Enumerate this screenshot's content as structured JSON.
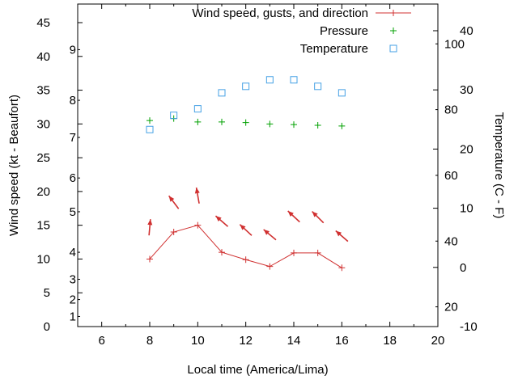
{
  "page": {
    "background": "#ffffff",
    "text_color": "#000000"
  },
  "chart_data": {
    "type": "line",
    "title": "",
    "xlabel": "Local time (America/Lima)",
    "ylabel_left": "Wind speed (kt - Beaufort)",
    "ylabel_right": "Temperature (C - F)",
    "grid": false,
    "legend": {
      "position": "top-center-inside",
      "entries": [
        {
          "label": "Wind speed, gusts, and direction",
          "marker": "line-plus",
          "color": "#d03030"
        },
        {
          "label": "Pressure",
          "marker": "plus",
          "color": "#00a000"
        },
        {
          "label": "Temperature",
          "marker": "open-square",
          "color": "#45a1e5"
        }
      ]
    },
    "x_axis": {
      "min": 5,
      "max": 20,
      "major_ticks": [
        6,
        8,
        10,
        12,
        14,
        16,
        18,
        20
      ],
      "minor_ticks": [
        7,
        9,
        11,
        13,
        15,
        17,
        19
      ]
    },
    "y_left_axis": {
      "min": 0,
      "max": 45,
      "unit": "kt",
      "major_ticks": [
        0,
        5,
        10,
        15,
        20,
        25,
        30,
        35,
        40,
        45
      ],
      "beaufort_labels": [
        {
          "label": "1",
          "kt": 1.5
        },
        {
          "label": "2",
          "kt": 4
        },
        {
          "label": "3",
          "kt": 7
        },
        {
          "label": "4",
          "kt": 11
        },
        {
          "label": "5",
          "kt": 17
        },
        {
          "label": "6",
          "kt": 22
        },
        {
          "label": "7",
          "kt": 28
        },
        {
          "label": "8",
          "kt": 33.5
        },
        {
          "label": "9",
          "kt": 41
        }
      ]
    },
    "y_right_axis": {
      "min": -10,
      "max": 40,
      "unit": "C",
      "major_ticks": [
        -10,
        0,
        10,
        20,
        30,
        40
      ],
      "fahrenheit_labels": [
        20,
        40,
        60,
        80,
        100
      ]
    },
    "series": {
      "wind_speed": {
        "name": "Wind speed",
        "color": "#d03030",
        "style": "line-plus",
        "x": [
          8,
          9,
          10,
          11,
          12,
          13,
          14,
          15,
          16
        ],
        "kt": [
          10,
          14,
          15,
          11,
          9.9,
          8.9,
          10.9,
          10.9,
          8.7
        ]
      },
      "wind_gusts_direction": {
        "name": "Gusts and direction",
        "color": "#d03030",
        "style": "arrows",
        "x": [
          8,
          9,
          10,
          11,
          12,
          13,
          14,
          15,
          16
        ],
        "gust_kt": [
          14.7,
          18.4,
          19.4,
          15.6,
          14.3,
          13.6,
          16.3,
          16.2,
          13.4
        ],
        "direction_deg_from_up": [
          5,
          -37,
          -10,
          -49,
          -47,
          -50,
          -47,
          -45,
          -49
        ]
      },
      "pressure": {
        "name": "Pressure",
        "color": "#00a000",
        "style": "plus",
        "axis": "left-scale",
        "x": [
          8,
          9,
          10,
          11,
          12,
          13,
          14,
          15,
          16
        ],
        "value": [
          30.5,
          30.8,
          30.3,
          30.3,
          30.2,
          30.0,
          29.9,
          29.8,
          29.7
        ]
      },
      "temperature": {
        "name": "Temperature",
        "color": "#45a1e5",
        "style": "open-square",
        "axis": "right",
        "x": [
          8,
          9,
          10,
          11,
          12,
          13,
          14,
          15,
          16
        ],
        "c": [
          23.3,
          25.7,
          26.8,
          29.5,
          30.6,
          31.7,
          31.7,
          30.6,
          29.5
        ]
      }
    }
  }
}
